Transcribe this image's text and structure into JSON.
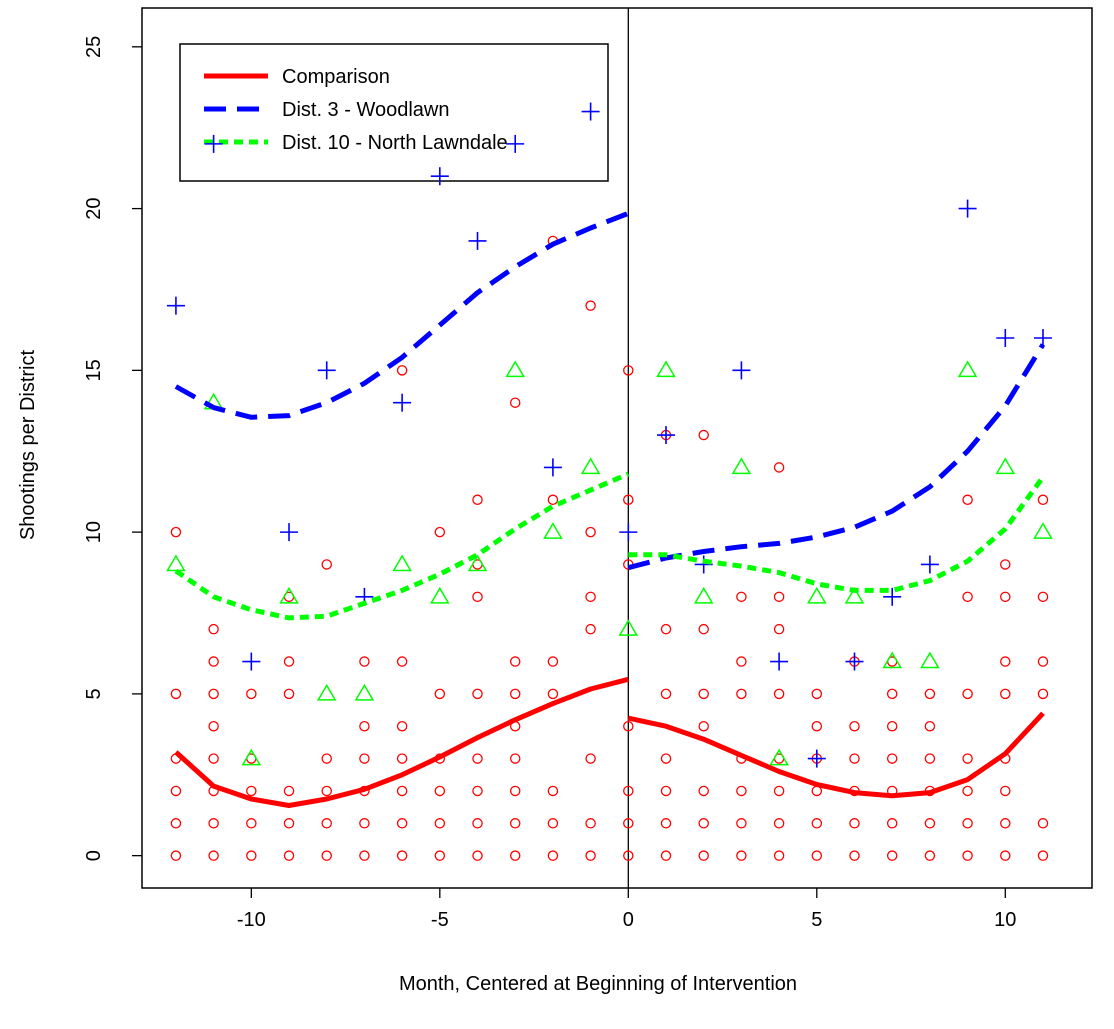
{
  "chart_data": {
    "type": "scatter",
    "title": "",
    "xlabel": "Month, Centered at Beginning of Intervention",
    "ylabel": "Shootings per District",
    "xlim": [
      -12.9,
      12.3
    ],
    "ylim": [
      -1.0,
      26.2
    ],
    "x_ticks": [
      -10,
      -5,
      0,
      5,
      10
    ],
    "y_ticks": [
      0,
      5,
      10,
      15,
      20,
      25
    ],
    "grid": false,
    "legend_position": "top-left",
    "vline_x": 0,
    "colors": {
      "comparison": "#ff0000",
      "woodlawn": "#0000ff",
      "lawndale": "#00ff00",
      "axis": "#000000"
    },
    "series": [
      {
        "name": "Comparison",
        "marker": "circle",
        "line_style": "solid",
        "color": "#ff0000",
        "points": [
          [
            -12,
            0
          ],
          [
            -12,
            1
          ],
          [
            -12,
            2
          ],
          [
            -12,
            3
          ],
          [
            -12,
            5
          ],
          [
            -12,
            10
          ],
          [
            -11,
            0
          ],
          [
            -11,
            1
          ],
          [
            -11,
            2
          ],
          [
            -11,
            3
          ],
          [
            -11,
            4
          ],
          [
            -11,
            5
          ],
          [
            -11,
            6
          ],
          [
            -11,
            7
          ],
          [
            -10,
            0
          ],
          [
            -10,
            1
          ],
          [
            -10,
            2
          ],
          [
            -10,
            3
          ],
          [
            -10,
            5
          ],
          [
            -9,
            0
          ],
          [
            -9,
            1
          ],
          [
            -9,
            2
          ],
          [
            -9,
            5
          ],
          [
            -9,
            6
          ],
          [
            -9,
            8
          ],
          [
            -8,
            0
          ],
          [
            -8,
            1
          ],
          [
            -8,
            2
          ],
          [
            -8,
            3
          ],
          [
            -8,
            9
          ],
          [
            -7,
            0
          ],
          [
            -7,
            1
          ],
          [
            -7,
            2
          ],
          [
            -7,
            3
          ],
          [
            -7,
            4
          ],
          [
            -7,
            6
          ],
          [
            -6,
            0
          ],
          [
            -6,
            1
          ],
          [
            -6,
            2
          ],
          [
            -6,
            3
          ],
          [
            -6,
            4
          ],
          [
            -6,
            6
          ],
          [
            -6,
            15
          ],
          [
            -5,
            0
          ],
          [
            -5,
            1
          ],
          [
            -5,
            2
          ],
          [
            -5,
            3
          ],
          [
            -5,
            5
          ],
          [
            -5,
            10
          ],
          [
            -4,
            0
          ],
          [
            -4,
            1
          ],
          [
            -4,
            2
          ],
          [
            -4,
            3
          ],
          [
            -4,
            5
          ],
          [
            -4,
            8
          ],
          [
            -4,
            9
          ],
          [
            -4,
            11
          ],
          [
            -3,
            0
          ],
          [
            -3,
            1
          ],
          [
            -3,
            2
          ],
          [
            -3,
            3
          ],
          [
            -3,
            4
          ],
          [
            -3,
            5
          ],
          [
            -3,
            6
          ],
          [
            -3,
            14
          ],
          [
            -2,
            0
          ],
          [
            -2,
            1
          ],
          [
            -2,
            2
          ],
          [
            -2,
            5
          ],
          [
            -2,
            6
          ],
          [
            -2,
            11
          ],
          [
            -2,
            19
          ],
          [
            -1,
            0
          ],
          [
            -1,
            1
          ],
          [
            -1,
            3
          ],
          [
            -1,
            7
          ],
          [
            -1,
            8
          ],
          [
            -1,
            10
          ],
          [
            -1,
            17
          ],
          [
            0,
            0
          ],
          [
            0,
            1
          ],
          [
            0,
            2
          ],
          [
            0,
            4
          ],
          [
            0,
            9
          ],
          [
            0,
            11
          ],
          [
            0,
            15
          ],
          [
            1,
            0
          ],
          [
            1,
            1
          ],
          [
            1,
            2
          ],
          [
            1,
            3
          ],
          [
            1,
            5
          ],
          [
            1,
            7
          ],
          [
            1,
            13
          ],
          [
            2,
            0
          ],
          [
            2,
            1
          ],
          [
            2,
            2
          ],
          [
            2,
            4
          ],
          [
            2,
            5
          ],
          [
            2,
            7
          ],
          [
            2,
            13
          ],
          [
            3,
            0
          ],
          [
            3,
            1
          ],
          [
            3,
            2
          ],
          [
            3,
            3
          ],
          [
            3,
            5
          ],
          [
            3,
            6
          ],
          [
            3,
            8
          ],
          [
            4,
            0
          ],
          [
            4,
            1
          ],
          [
            4,
            2
          ],
          [
            4,
            3
          ],
          [
            4,
            5
          ],
          [
            4,
            7
          ],
          [
            4,
            8
          ],
          [
            4,
            12
          ],
          [
            5,
            0
          ],
          [
            5,
            1
          ],
          [
            5,
            2
          ],
          [
            5,
            3
          ],
          [
            5,
            4
          ],
          [
            5,
            5
          ],
          [
            6,
            0
          ],
          [
            6,
            1
          ],
          [
            6,
            2
          ],
          [
            6,
            3
          ],
          [
            6,
            4
          ],
          [
            6,
            6
          ],
          [
            7,
            0
          ],
          [
            7,
            1
          ],
          [
            7,
            2
          ],
          [
            7,
            3
          ],
          [
            7,
            4
          ],
          [
            7,
            5
          ],
          [
            7,
            6
          ],
          [
            8,
            0
          ],
          [
            8,
            1
          ],
          [
            8,
            2
          ],
          [
            8,
            3
          ],
          [
            8,
            4
          ],
          [
            8,
            5
          ],
          [
            9,
            0
          ],
          [
            9,
            1
          ],
          [
            9,
            2
          ],
          [
            9,
            3
          ],
          [
            9,
            5
          ],
          [
            9,
            8
          ],
          [
            9,
            11
          ],
          [
            10,
            0
          ],
          [
            10,
            1
          ],
          [
            10,
            2
          ],
          [
            10,
            3
          ],
          [
            10,
            5
          ],
          [
            10,
            6
          ],
          [
            10,
            8
          ],
          [
            10,
            9
          ],
          [
            11,
            0
          ],
          [
            11,
            1
          ],
          [
            11,
            5
          ],
          [
            11,
            6
          ],
          [
            11,
            8
          ],
          [
            11,
            11
          ]
        ],
        "curve_pre": [
          [
            -12,
            3.2
          ],
          [
            -11,
            2.15
          ],
          [
            -10,
            1.75
          ],
          [
            -9,
            1.55
          ],
          [
            -8,
            1.75
          ],
          [
            -7,
            2.05
          ],
          [
            -6,
            2.5
          ],
          [
            -5,
            3.05
          ],
          [
            -4,
            3.65
          ],
          [
            -3,
            4.2
          ],
          [
            -2,
            4.7
          ],
          [
            -1,
            5.15
          ],
          [
            0,
            5.45
          ]
        ],
        "curve_post": [
          [
            0,
            4.25
          ],
          [
            1,
            4.0
          ],
          [
            2,
            3.6
          ],
          [
            3,
            3.1
          ],
          [
            4,
            2.6
          ],
          [
            5,
            2.2
          ],
          [
            6,
            1.95
          ],
          [
            7,
            1.85
          ],
          [
            8,
            1.95
          ],
          [
            9,
            2.35
          ],
          [
            10,
            3.15
          ],
          [
            11,
            4.4
          ]
        ]
      },
      {
        "name": "Dist. 3 - Woodlawn",
        "marker": "plus",
        "line_style": "dashed",
        "color": "#0000ff",
        "points": [
          [
            -12,
            17
          ],
          [
            -11,
            22
          ],
          [
            -10,
            6
          ],
          [
            -9,
            10
          ],
          [
            -8,
            15
          ],
          [
            -7,
            8
          ],
          [
            -6,
            14
          ],
          [
            -5,
            21
          ],
          [
            -4,
            19
          ],
          [
            -3,
            22
          ],
          [
            -2,
            12
          ],
          [
            -1,
            23
          ],
          [
            0,
            10
          ],
          [
            1,
            13
          ],
          [
            2,
            9
          ],
          [
            3,
            15
          ],
          [
            4,
            6
          ],
          [
            5,
            3
          ],
          [
            6,
            6
          ],
          [
            7,
            8
          ],
          [
            8,
            9
          ],
          [
            9,
            20
          ],
          [
            10,
            16
          ],
          [
            11,
            16
          ]
        ],
        "curve_pre": [
          [
            -12,
            14.5
          ],
          [
            -11,
            13.85
          ],
          [
            -10,
            13.55
          ],
          [
            -9,
            13.6
          ],
          [
            -8,
            14.0
          ],
          [
            -7,
            14.6
          ],
          [
            -6,
            15.4
          ],
          [
            -5,
            16.4
          ],
          [
            -4,
            17.4
          ],
          [
            -3,
            18.2
          ],
          [
            -2,
            18.9
          ],
          [
            -1,
            19.4
          ],
          [
            0,
            19.85
          ]
        ],
        "curve_post": [
          [
            0,
            8.9
          ],
          [
            1,
            9.2
          ],
          [
            2,
            9.4
          ],
          [
            3,
            9.55
          ],
          [
            4,
            9.65
          ],
          [
            5,
            9.85
          ],
          [
            6,
            10.15
          ],
          [
            7,
            10.65
          ],
          [
            8,
            11.4
          ],
          [
            9,
            12.5
          ],
          [
            10,
            13.9
          ],
          [
            11,
            15.8
          ]
        ]
      },
      {
        "name": "Dist. 10 - North Lawndale",
        "marker": "triangle",
        "line_style": "dotted",
        "color": "#00ff00",
        "points": [
          [
            -12,
            9
          ],
          [
            -11,
            14
          ],
          [
            -10,
            3
          ],
          [
            -9,
            8
          ],
          [
            -8,
            5
          ],
          [
            -7,
            5
          ],
          [
            -6,
            9
          ],
          [
            -5,
            8
          ],
          [
            -4,
            9
          ],
          [
            -3,
            15
          ],
          [
            -2,
            10
          ],
          [
            -1,
            12
          ],
          [
            0,
            7
          ],
          [
            1,
            15
          ],
          [
            2,
            8
          ],
          [
            3,
            12
          ],
          [
            4,
            3
          ],
          [
            5,
            8
          ],
          [
            6,
            8
          ],
          [
            7,
            6
          ],
          [
            8,
            6
          ],
          [
            9,
            15
          ],
          [
            10,
            12
          ],
          [
            11,
            10
          ]
        ],
        "curve_pre": [
          [
            -12,
            8.8
          ],
          [
            -11,
            8.0
          ],
          [
            -10,
            7.6
          ],
          [
            -9,
            7.35
          ],
          [
            -8,
            7.4
          ],
          [
            -7,
            7.8
          ],
          [
            -6,
            8.2
          ],
          [
            -5,
            8.7
          ],
          [
            -4,
            9.3
          ],
          [
            -3,
            10.1
          ],
          [
            -2,
            10.8
          ],
          [
            -1,
            11.3
          ],
          [
            0,
            11.8
          ]
        ],
        "curve_post": [
          [
            0,
            9.3
          ],
          [
            1,
            9.3
          ],
          [
            2,
            9.1
          ],
          [
            3,
            8.95
          ],
          [
            4,
            8.75
          ],
          [
            5,
            8.4
          ],
          [
            6,
            8.2
          ],
          [
            7,
            8.2
          ],
          [
            8,
            8.5
          ],
          [
            9,
            9.1
          ],
          [
            10,
            10.1
          ],
          [
            11,
            11.7
          ]
        ]
      }
    ]
  }
}
